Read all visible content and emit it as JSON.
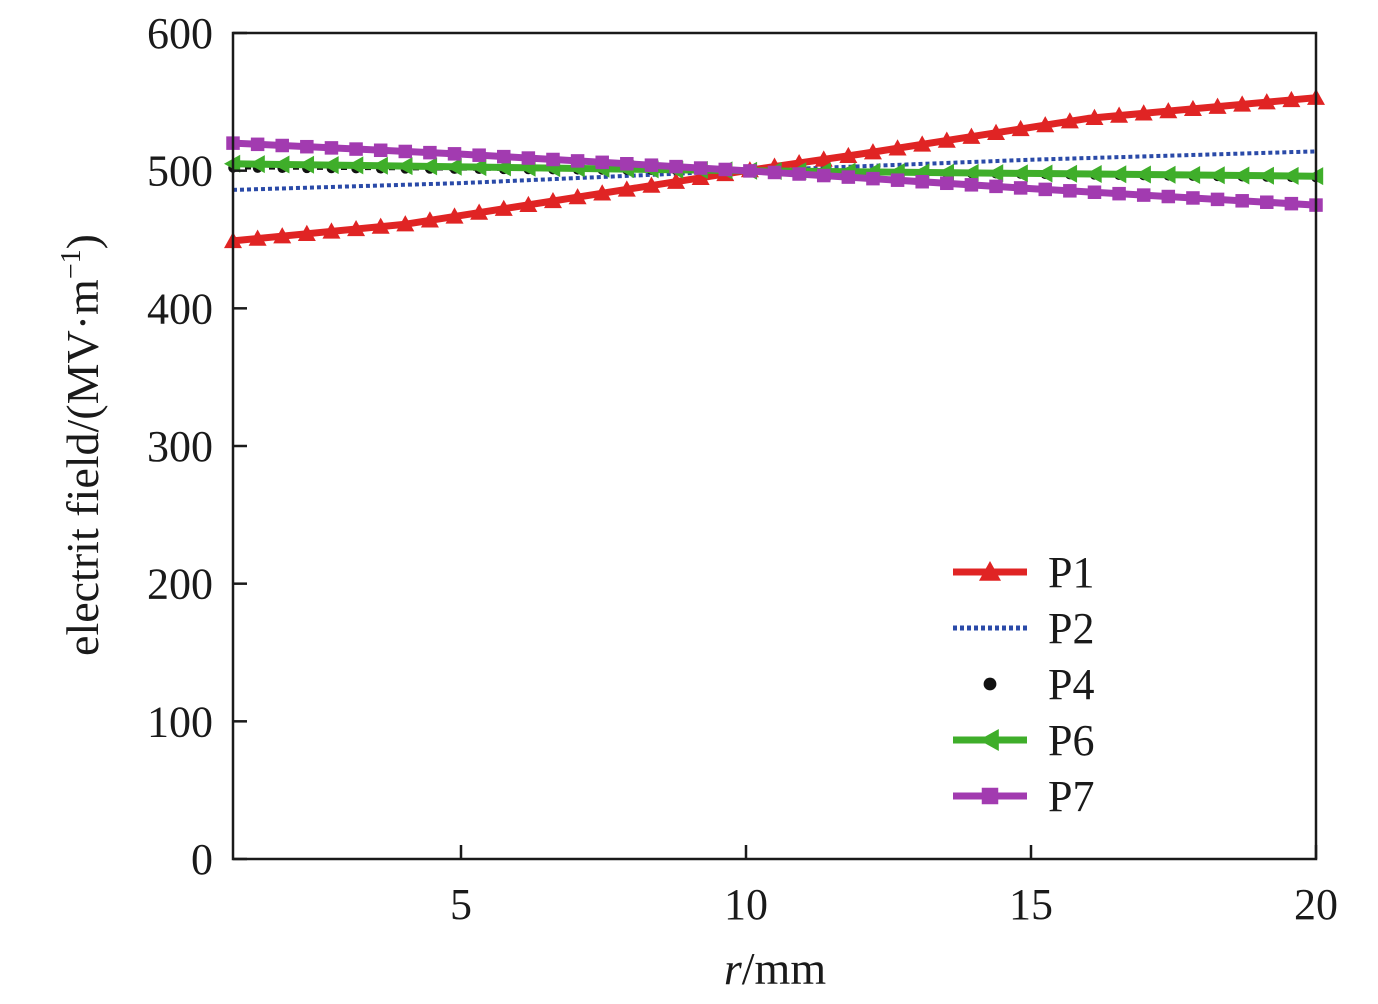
{
  "chart_data": {
    "type": "line",
    "xlabel_italic": "r",
    "xlabel_rest": "/mm",
    "ylabel_main": "electrit field/(MV·m",
    "ylabel_sup": "−1",
    "ylabel_close": ")",
    "xlim": [
      1,
      20
    ],
    "ylim": [
      0,
      600
    ],
    "x_ticks": [
      5,
      10,
      15,
      20
    ],
    "x_tick_labels": [
      "5",
      "10",
      "15",
      "20"
    ],
    "y_ticks": [
      0,
      100,
      200,
      300,
      400,
      500,
      600
    ],
    "y_tick_labels": [
      "0",
      "100",
      "200",
      "300",
      "400",
      "500",
      "600"
    ],
    "grid": false,
    "legend_position": "bottom-right",
    "series": [
      {
        "name": "P1",
        "color": "#e02424",
        "line": "solid",
        "marker": "triangle-up",
        "x": [
          1,
          4,
          8,
          10,
          12,
          16,
          20
        ],
        "y": [
          449,
          461,
          487,
          500,
          512,
          538,
          553
        ]
      },
      {
        "name": "P2",
        "color": "#2a4aa8",
        "line": "dotted",
        "marker": "none",
        "x": [
          1,
          5,
          10,
          15,
          20
        ],
        "y": [
          486,
          491,
          500,
          508,
          514
        ]
      },
      {
        "name": "P4",
        "color": "#111111",
        "line": "dots",
        "marker": "circle",
        "x": [
          1,
          10,
          20
        ],
        "y": [
          502,
          500,
          495
        ]
      },
      {
        "name": "P6",
        "color": "#3fae2a",
        "line": "solid",
        "marker": "triangle-left",
        "x": [
          1,
          10,
          20
        ],
        "y": [
          505,
          500,
          496
        ]
      },
      {
        "name": "P7",
        "color": "#a23bb0",
        "line": "solid",
        "marker": "square",
        "x": [
          1,
          5,
          10,
          15,
          20
        ],
        "y": [
          520,
          512,
          500,
          487,
          475
        ]
      }
    ]
  }
}
